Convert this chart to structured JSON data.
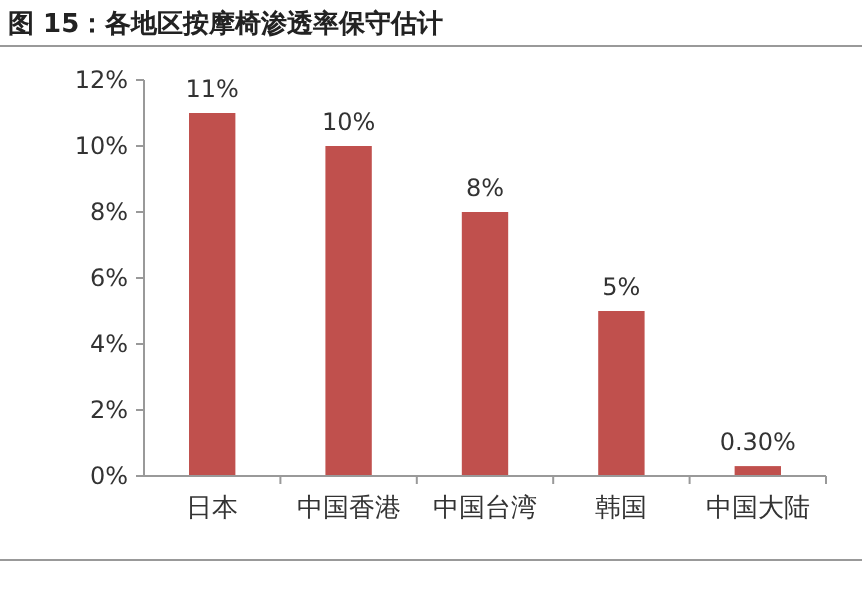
{
  "chart_data": {
    "type": "bar",
    "title": "图 15：各地区按摩椅渗透率保守估计",
    "categories": [
      "日本",
      "中国香港",
      "中国台湾",
      "韩国",
      "中国大陆"
    ],
    "values": [
      11,
      10,
      8,
      5,
      0.3
    ],
    "value_labels": [
      "11%",
      "10%",
      "8%",
      "5%",
      "0.30%"
    ],
    "color": "#c0504d",
    "ylim": [
      0,
      12
    ],
    "yticks": [
      {
        "value": 0,
        "label": "0%"
      },
      {
        "value": 2,
        "label": "2%"
      },
      {
        "value": 4,
        "label": "4%"
      },
      {
        "value": 6,
        "label": "6%"
      },
      {
        "value": 8,
        "label": "8%"
      },
      {
        "value": 10,
        "label": "10%"
      },
      {
        "value": 12,
        "label": "12%"
      }
    ],
    "grid": false
  }
}
